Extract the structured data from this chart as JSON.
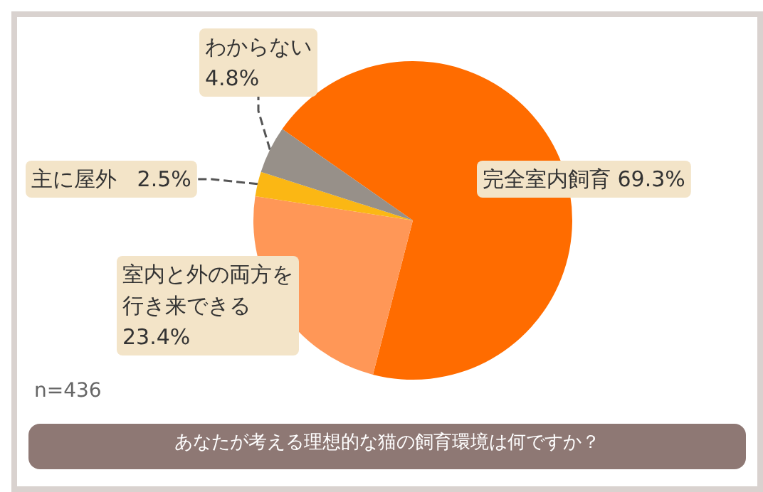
{
  "chart_data": {
    "type": "pie",
    "title": "あなたが考える理想的な猫の飼育環境は何ですか？",
    "categories": [
      "完全室内飼育",
      "室内と外の両方を行き来できる",
      "主に屋外",
      "わからない"
    ],
    "values": [
      69.3,
      23.4,
      2.5,
      4.8
    ],
    "colors": [
      "#ff6c00",
      "#ff9757",
      "#fbb714",
      "#979089"
    ],
    "value_labels": [
      "69.3%",
      "23.4%",
      "2.5%",
      "4.8%"
    ],
    "annotations": [
      "n=436"
    ]
  }
}
